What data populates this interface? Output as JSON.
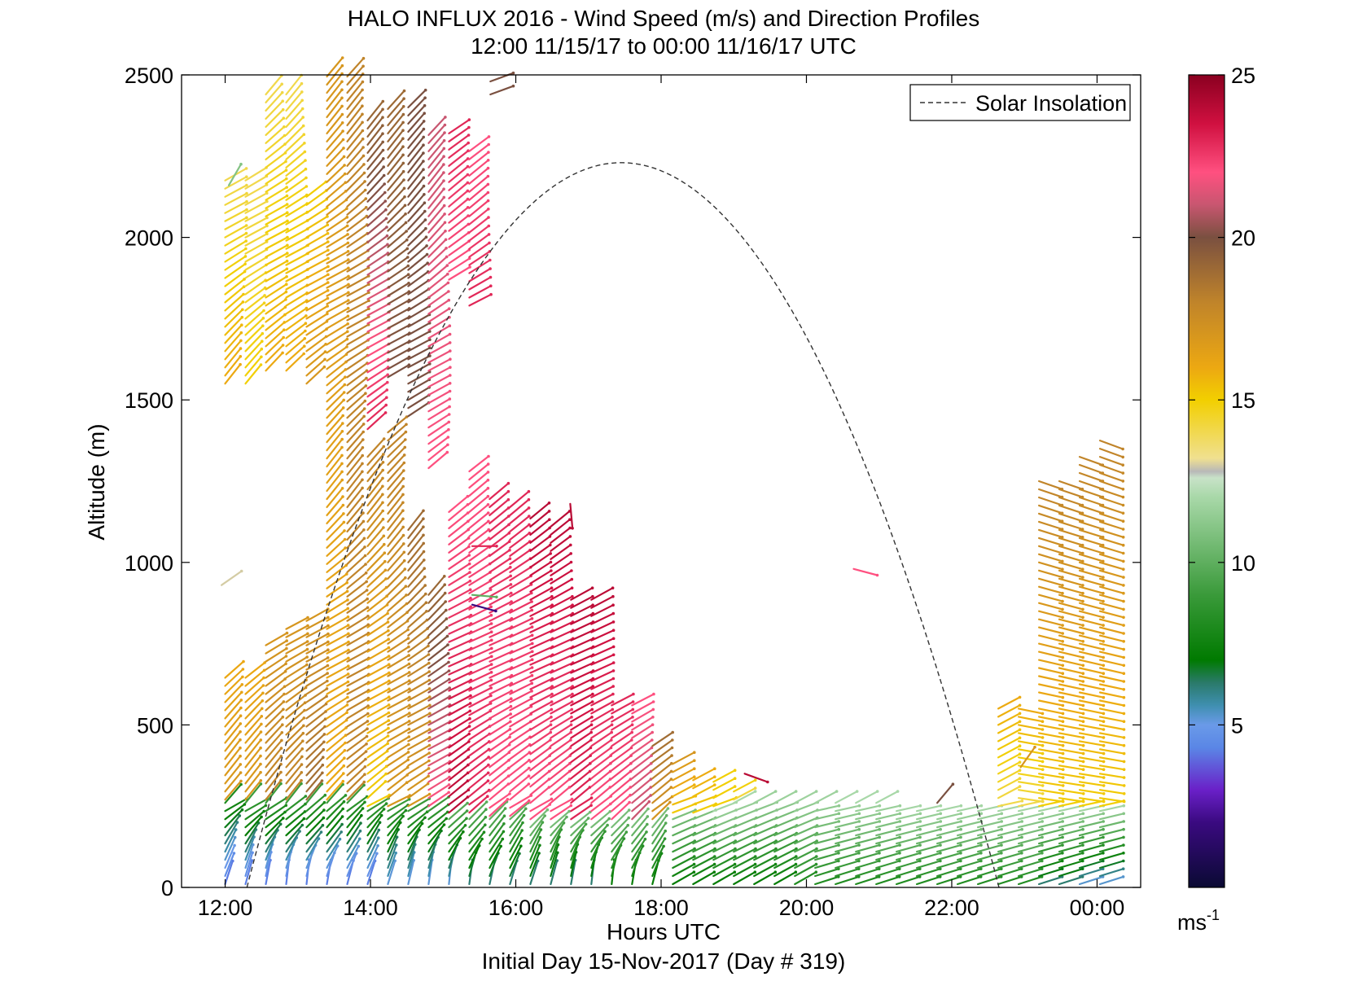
{
  "chart_data": {
    "type": "wind_barb_profile",
    "title": "HALO INFLUX 2016 - Wind Speed (m/s) and Direction Profiles",
    "subtitle": "12:00 11/15/17 to 00:00 11/16/17  UTC",
    "xlabel": "Hours UTC",
    "xlabel2": "Initial Day 15-Nov-2017 (Day # 319)",
    "ylabel": "Altitude (m)",
    "xlim": [
      11.4,
      24.6
    ],
    "ylim": [
      0,
      2500
    ],
    "x_ticks": [
      12,
      14,
      16,
      18,
      20,
      22,
      24
    ],
    "x_tick_labels": [
      "12:00",
      "14:00",
      "16:00",
      "18:00",
      "20:00",
      "22:00",
      "00:00"
    ],
    "y_ticks": [
      0,
      500,
      1000,
      1500,
      2000,
      2500
    ],
    "y_tick_labels": [
      "0",
      "500",
      "1000",
      "1500",
      "2000",
      "2500"
    ],
    "legend": {
      "entries": [
        {
          "label": "Solar Insolation",
          "style": "dashed",
          "color": "#000000"
        }
      ],
      "placement": "top-right"
    },
    "solar_insolation": {
      "start_hour": 12.3,
      "peak_hour": 17.45,
      "end_hour": 22.65,
      "peak_altitude": 2230
    },
    "colorbar": {
      "range": [
        0,
        25
      ],
      "ticks": [
        5,
        10,
        15,
        20,
        25
      ],
      "tick_labels": [
        "5",
        "10",
        "15",
        "20",
        "25"
      ],
      "unit_base": "ms",
      "unit_exp": "-1",
      "stops": [
        {
          "v": 0,
          "c": "#0a0a33"
        },
        {
          "v": 2,
          "c": "#3a0a80"
        },
        {
          "v": 3,
          "c": "#6a20c8"
        },
        {
          "v": 4.3,
          "c": "#5a86e6"
        },
        {
          "v": 5,
          "c": "#6a9ae8"
        },
        {
          "v": 5.6,
          "c": "#3f8fb0"
        },
        {
          "v": 6.3,
          "c": "#2a7a6a"
        },
        {
          "v": 7,
          "c": "#007a00"
        },
        {
          "v": 9,
          "c": "#3a9a3a"
        },
        {
          "v": 12,
          "c": "#a8d8a8"
        },
        {
          "v": 12.6,
          "c": "#c8e2c8"
        },
        {
          "v": 12.8,
          "c": "#b8b8b8"
        },
        {
          "v": 13.2,
          "c": "#f0e090"
        },
        {
          "v": 15,
          "c": "#f2cf00"
        },
        {
          "v": 16,
          "c": "#eca812"
        },
        {
          "v": 18,
          "c": "#c0842a"
        },
        {
          "v": 20,
          "c": "#7a5040"
        },
        {
          "v": 21,
          "c": "#c85670"
        },
        {
          "v": 22,
          "c": "#ff5080"
        },
        {
          "v": 23.5,
          "c": "#d01040"
        },
        {
          "v": 25,
          "c": "#8a0020"
        }
      ]
    },
    "profiles_time_step_hours": 0.28,
    "profiles": [
      {
        "t": 12.0,
        "segs": [
          [
            0,
            260,
            4,
            8
          ],
          [
            260,
            660,
            17,
            16
          ],
          [
            1540,
            2180,
            16,
            14
          ]
        ]
      },
      {
        "t": 12.28,
        "segs": [
          [
            0,
            260,
            4,
            9
          ],
          [
            260,
            660,
            17,
            16
          ],
          [
            1540,
            2180,
            15,
            14
          ]
        ]
      },
      {
        "t": 12.56,
        "segs": [
          [
            0,
            260,
            4,
            9
          ],
          [
            260,
            760,
            18,
            17
          ],
          [
            1580,
            2460,
            16,
            14
          ]
        ]
      },
      {
        "t": 12.84,
        "segs": [
          [
            0,
            260,
            4,
            9
          ],
          [
            260,
            800,
            18,
            17
          ],
          [
            1580,
            2460,
            16,
            14
          ]
        ]
      },
      {
        "t": 13.12,
        "segs": [
          [
            0,
            260,
            4,
            9
          ],
          [
            260,
            830,
            19,
            17
          ],
          [
            1540,
            2140,
            17,
            15
          ]
        ]
      },
      {
        "t": 13.4,
        "segs": [
          [
            0,
            260,
            4,
            9
          ],
          [
            260,
            2500,
            16,
            17
          ]
        ]
      },
      {
        "t": 13.68,
        "segs": [
          [
            0,
            260,
            4,
            9
          ],
          [
            260,
            2500,
            18,
            18
          ]
        ]
      },
      {
        "t": 13.96,
        "segs": [
          [
            0,
            240,
            4,
            9
          ],
          [
            240,
            1340,
            15,
            18
          ],
          [
            1400,
            2380,
            23,
            19
          ]
        ]
      },
      {
        "t": 14.24,
        "segs": [
          [
            0,
            240,
            5,
            9
          ],
          [
            240,
            1400,
            17,
            18
          ],
          [
            1560,
            2400,
            20,
            19
          ]
        ]
      },
      {
        "t": 14.52,
        "segs": [
          [
            0,
            240,
            5,
            9
          ],
          [
            240,
            1120,
            17,
            19
          ],
          [
            1440,
            2400,
            20,
            20
          ]
        ]
      },
      {
        "t": 14.8,
        "segs": [
          [
            0,
            240,
            5,
            9
          ],
          [
            240,
            920,
            22,
            19
          ],
          [
            1280,
            2320,
            22,
            21
          ]
        ]
      },
      {
        "t": 15.08,
        "segs": [
          [
            0,
            220,
            5,
            10
          ],
          [
            220,
            1160,
            24,
            22
          ],
          [
            1860,
            2320,
            22,
            23
          ]
        ]
      },
      {
        "t": 15.36,
        "segs": [
          [
            0,
            220,
            6,
            10
          ],
          [
            220,
            1280,
            23,
            22
          ],
          [
            1780,
            2280,
            23,
            22
          ]
        ]
      },
      {
        "t": 15.64,
        "segs": [
          [
            0,
            210,
            6,
            10
          ],
          [
            210,
            1200,
            22,
            23
          ]
        ]
      },
      {
        "t": 15.92,
        "segs": [
          [
            0,
            210,
            6,
            10
          ],
          [
            210,
            1180,
            22,
            23
          ]
        ]
      },
      {
        "t": 16.2,
        "segs": [
          [
            0,
            200,
            6,
            11
          ],
          [
            200,
            1140,
            22,
            24
          ]
        ]
      },
      {
        "t": 16.48,
        "segs": [
          [
            0,
            200,
            6,
            11
          ],
          [
            200,
            1120,
            22,
            24
          ]
        ]
      },
      {
        "t": 16.76,
        "segs": [
          [
            0,
            200,
            6,
            11
          ],
          [
            200,
            900,
            23,
            24
          ]
        ]
      },
      {
        "t": 17.04,
        "segs": [
          [
            0,
            200,
            6,
            11
          ],
          [
            200,
            900,
            22,
            24
          ]
        ]
      },
      {
        "t": 17.32,
        "segs": [
          [
            0,
            200,
            7,
            11
          ],
          [
            200,
            580,
            22,
            23
          ]
        ]
      },
      {
        "t": 17.6,
        "segs": [
          [
            0,
            200,
            7,
            11
          ],
          [
            200,
            560,
            21,
            22
          ]
        ]
      },
      {
        "t": 17.88,
        "segs": [
          [
            0,
            200,
            7,
            11
          ],
          [
            200,
            450,
            17,
            19
          ]
        ]
      },
      {
        "t": 18.16,
        "segs": [
          [
            0,
            220,
            7,
            11
          ],
          [
            220,
            380,
            15,
            17
          ]
        ]
      },
      {
        "t": 18.44,
        "segs": [
          [
            0,
            220,
            7,
            11
          ],
          [
            220,
            340,
            15,
            16
          ]
        ]
      },
      {
        "t": 18.72,
        "segs": [
          [
            0,
            240,
            7,
            12
          ],
          [
            240,
            330,
            15,
            15
          ]
        ]
      },
      {
        "t": 19.0,
        "segs": [
          [
            0,
            260,
            7,
            12
          ],
          [
            260,
            300,
            14,
            15
          ]
        ]
      },
      {
        "t": 19.28,
        "segs": [
          [
            0,
            280,
            7,
            12
          ]
        ]
      },
      {
        "t": 19.56,
        "segs": [
          [
            0,
            280,
            7,
            12
          ]
        ]
      },
      {
        "t": 19.84,
        "segs": [
          [
            0,
            280,
            8,
            12
          ]
        ]
      },
      {
        "t": 20.12,
        "segs": [
          [
            0,
            280,
            8,
            12
          ]
        ]
      },
      {
        "t": 20.4,
        "segs": [
          [
            0,
            260,
            8,
            12
          ]
        ]
      },
      {
        "t": 20.68,
        "segs": [
          [
            0,
            260,
            8,
            12
          ]
        ]
      },
      {
        "t": 20.96,
        "segs": [
          [
            0,
            260,
            8,
            12
          ]
        ]
      },
      {
        "t": 21.24,
        "segs": [
          [
            0,
            240,
            8,
            12
          ]
        ]
      },
      {
        "t": 21.52,
        "segs": [
          [
            0,
            240,
            8,
            12
          ]
        ]
      },
      {
        "t": 21.8,
        "segs": [
          [
            0,
            240,
            8,
            12
          ]
        ]
      },
      {
        "t": 22.08,
        "segs": [
          [
            0,
            240,
            8,
            12
          ]
        ]
      },
      {
        "t": 22.36,
        "segs": [
          [
            0,
            240,
            8,
            12
          ]
        ]
      },
      {
        "t": 22.64,
        "segs": [
          [
            0,
            240,
            8,
            12
          ],
          [
            240,
            560,
            14,
            16
          ]
        ]
      },
      {
        "t": 22.92,
        "segs": [
          [
            0,
            240,
            8,
            12
          ],
          [
            240,
            560,
            14,
            16
          ]
        ]
      },
      {
        "t": 23.2,
        "segs": [
          [
            0,
            240,
            6,
            12
          ],
          [
            240,
            1260,
            15,
            18
          ]
        ]
      },
      {
        "t": 23.48,
        "segs": [
          [
            0,
            240,
            6,
            12
          ],
          [
            240,
            1260,
            15,
            18
          ]
        ]
      },
      {
        "t": 23.76,
        "segs": [
          [
            0,
            240,
            5,
            12
          ],
          [
            240,
            1340,
            15,
            18
          ]
        ]
      },
      {
        "t": 24.04,
        "segs": [
          [
            0,
            240,
            5,
            12
          ],
          [
            240,
            1380,
            15,
            18
          ]
        ]
      }
    ],
    "isolated_vectors": [
      {
        "t": 11.95,
        "z": 930,
        "speed": 13,
        "angle_deg": 35
      },
      {
        "t": 12.05,
        "z": 2160,
        "speed": 11,
        "angle_deg": 60
      },
      {
        "t": 15.4,
        "z": 870,
        "speed": 2,
        "angle_deg": -15
      },
      {
        "t": 15.4,
        "z": 900,
        "speed": 10,
        "angle_deg": -5
      },
      {
        "t": 15.4,
        "z": 1050,
        "speed": 23,
        "angle_deg": 0
      },
      {
        "t": 16.75,
        "z": 1180,
        "speed": 24,
        "angle_deg": -85
      },
      {
        "t": 19.15,
        "z": 350,
        "speed": 24,
        "angle_deg": -20
      },
      {
        "t": 20.65,
        "z": 980,
        "speed": 22,
        "angle_deg": -15
      },
      {
        "t": 21.8,
        "z": 260,
        "speed": 20,
        "angle_deg": 50
      },
      {
        "t": 22.95,
        "z": 370,
        "speed": 17,
        "angle_deg": 55
      },
      {
        "t": 15.65,
        "z": 2480,
        "speed": 20,
        "angle_deg": 20
      },
      {
        "t": 15.65,
        "z": 2440,
        "speed": 20,
        "angle_deg": 20
      }
    ]
  }
}
